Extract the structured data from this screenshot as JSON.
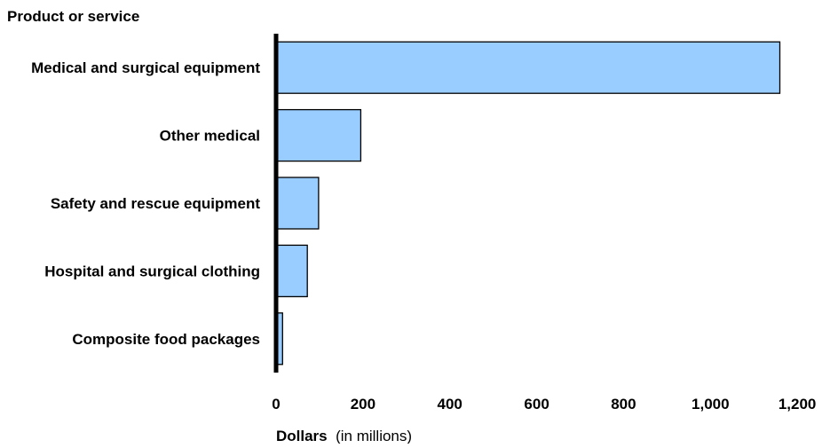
{
  "chart_data": {
    "type": "bar",
    "orientation": "horizontal",
    "categories": [
      "Medical and surgical equipment",
      "Other medical",
      "Safety and rescue equipment",
      "Hospital and surgical clothing",
      "Composite food packages"
    ],
    "values": [
      1160,
      195,
      98,
      72,
      15
    ],
    "y_axis_title": "Product or service",
    "x_axis_title": "Dollars",
    "x_axis_title_note": "(in millions)",
    "xlim": [
      0,
      1200
    ],
    "x_ticks": [
      0,
      200,
      400,
      600,
      800,
      1000,
      1200
    ],
    "x_tick_labels": [
      "0",
      "200",
      "400",
      "600",
      "800",
      "1,000",
      "1,200"
    ],
    "grid": false,
    "legend": "none",
    "colors": {
      "bar_fill": "#99ccff",
      "bar_stroke": "#000000",
      "axis": "#000000"
    }
  }
}
